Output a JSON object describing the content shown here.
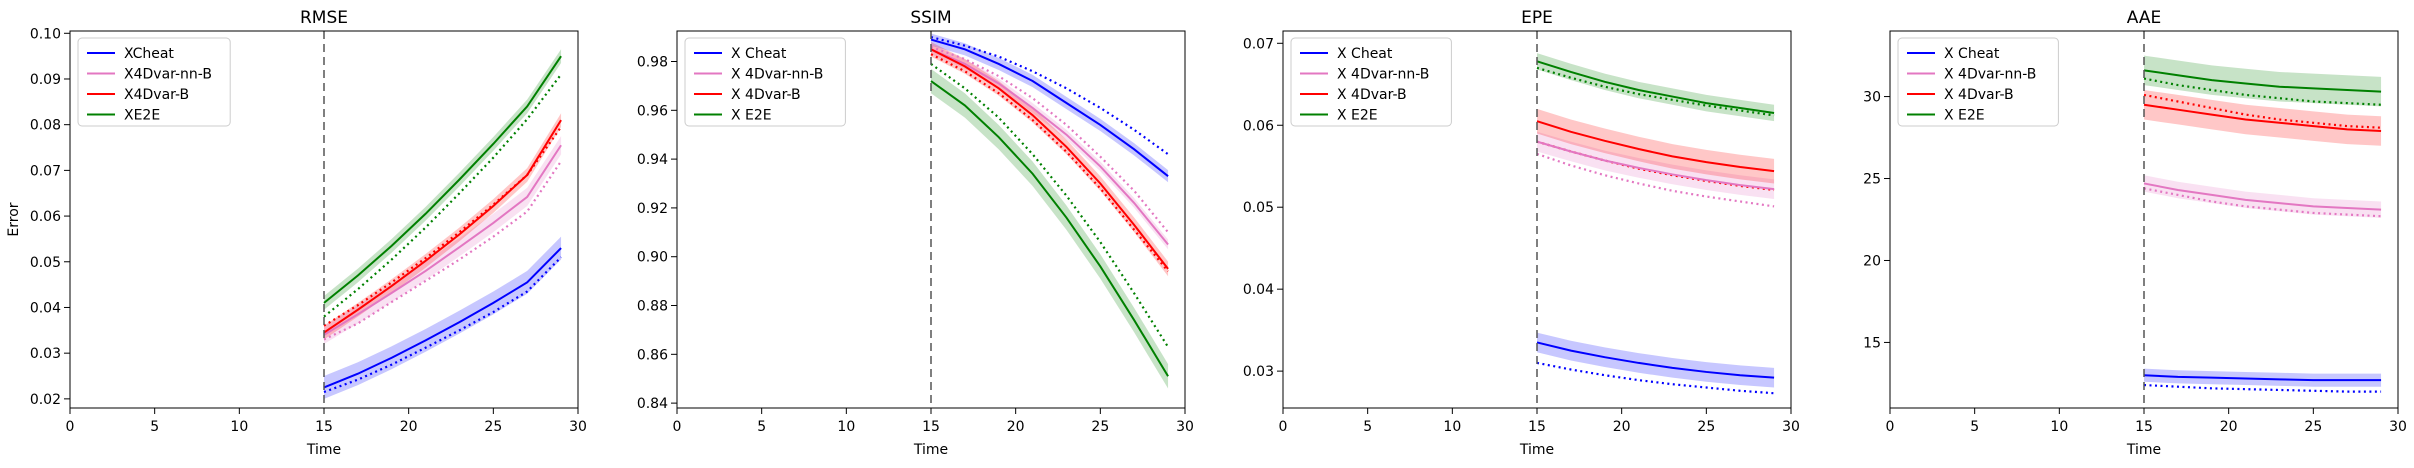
{
  "chart_data": [
    {
      "type": "line",
      "title": "RMSE",
      "xlabel": "Time",
      "ylabel": "Error",
      "xlim": [
        0,
        30
      ],
      "ylim": [
        0.018,
        0.1005
      ],
      "xticks": [
        "0",
        "5",
        "10",
        "15",
        "20",
        "25",
        "30"
      ],
      "yticks": [
        "0.02",
        "0.03",
        "0.04",
        "0.05",
        "0.06",
        "0.07",
        "0.08",
        "0.09",
        "0.10"
      ],
      "vline_x": 15,
      "legend_position": "top-left",
      "x": [
        15,
        17,
        19,
        21,
        23,
        25,
        27,
        29
      ],
      "series": [
        {
          "name": "XCheat",
          "color": "#0000ff",
          "values": [
            0.0225,
            0.0255,
            0.029,
            0.0328,
            0.0368,
            0.041,
            0.0455,
            0.053
          ],
          "dotted": [
            0.0215,
            0.0242,
            0.0275,
            0.0312,
            0.035,
            0.039,
            0.0435,
            0.051
          ],
          "band": 0.0025
        },
        {
          "name": "X4Dvar-nn-B",
          "color": "#e377c2",
          "values": [
            0.034,
            0.0385,
            0.0432,
            0.048,
            0.0532,
            0.0585,
            0.0642,
            0.0755
          ],
          "dotted": [
            0.033,
            0.0365,
            0.0412,
            0.0458,
            0.0505,
            0.0555,
            0.061,
            0.072
          ],
          "band": 0.002
        },
        {
          "name": "X4Dvar-B",
          "color": "#ff0000",
          "values": [
            0.0345,
            0.0395,
            0.0447,
            0.0502,
            0.056,
            0.0622,
            0.069,
            0.081
          ],
          "dotted": [
            0.036,
            0.0405,
            0.0455,
            0.0508,
            0.0565,
            0.0625,
            0.069,
            0.0795
          ],
          "band": 0.0015
        },
        {
          "name": "XE2E",
          "color": "#008000",
          "values": [
            0.041,
            0.047,
            0.0535,
            0.0605,
            0.068,
            0.0758,
            0.084,
            0.095
          ],
          "dotted": [
            0.038,
            0.044,
            0.0505,
            0.0575,
            0.065,
            0.0728,
            0.0812,
            0.091
          ],
          "band": 0.0015
        }
      ]
    },
    {
      "type": "line",
      "title": "SSIM",
      "xlabel": "Time",
      "ylabel": "",
      "xlim": [
        0,
        30
      ],
      "ylim": [
        0.838,
        0.9925
      ],
      "xticks": [
        "0",
        "5",
        "10",
        "15",
        "20",
        "25",
        "30"
      ],
      "yticks": [
        "0.84",
        "0.86",
        "0.88",
        "0.90",
        "0.92",
        "0.94",
        "0.96",
        "0.98"
      ],
      "vline_x": 15,
      "legend_position": "top-left",
      "x": [
        15,
        17,
        19,
        21,
        23,
        25,
        27,
        29
      ],
      "series": [
        {
          "name": "X Cheat",
          "color": "#0000ff",
          "values": [
            0.989,
            0.985,
            0.979,
            0.972,
            0.963,
            0.954,
            0.944,
            0.933
          ],
          "dotted": [
            0.99,
            0.9865,
            0.982,
            0.976,
            0.969,
            0.961,
            0.952,
            0.942
          ],
          "band": 0.0025
        },
        {
          "name": "X 4Dvar-nn-B",
          "color": "#e377c2",
          "values": [
            0.985,
            0.979,
            0.971,
            0.961,
            0.95,
            0.937,
            0.922,
            0.905
          ],
          "dotted": [
            0.986,
            0.981,
            0.974,
            0.965,
            0.954,
            0.941,
            0.927,
            0.91
          ],
          "band": 0.002
        },
        {
          "name": "X 4Dvar-B",
          "color": "#ff0000",
          "values": [
            0.985,
            0.978,
            0.969,
            0.958,
            0.945,
            0.93,
            0.913,
            0.895
          ],
          "dotted": [
            0.983,
            0.976,
            0.967,
            0.956,
            0.943,
            0.928,
            0.911,
            0.894
          ],
          "band": 0.003
        },
        {
          "name": "X E2E",
          "color": "#008000",
          "values": [
            0.972,
            0.962,
            0.949,
            0.934,
            0.916,
            0.896,
            0.874,
            0.851
          ],
          "dotted": [
            0.979,
            0.969,
            0.957,
            0.942,
            0.925,
            0.906,
            0.885,
            0.863
          ],
          "band": 0.005
        }
      ]
    },
    {
      "type": "line",
      "title": "EPE",
      "xlabel": "Time",
      "ylabel": "",
      "xlim": [
        0,
        30
      ],
      "ylim": [
        0.0255,
        0.0715
      ],
      "xticks": [
        "0",
        "5",
        "10",
        "15",
        "20",
        "25",
        "30"
      ],
      "yticks": [
        "0.03",
        "0.04",
        "0.05",
        "0.06",
        "0.07"
      ],
      "vline_x": 15,
      "legend_position": "top-left",
      "x": [
        15,
        17,
        19,
        21,
        23,
        25,
        27,
        29
      ],
      "series": [
        {
          "name": "X Cheat",
          "color": "#0000ff",
          "values": [
            0.0335,
            0.0325,
            0.0317,
            0.031,
            0.0304,
            0.0299,
            0.0295,
            0.0292
          ],
          "dotted": [
            0.031,
            0.0302,
            0.0295,
            0.0289,
            0.0284,
            0.028,
            0.0276,
            0.0273
          ],
          "band": 0.0012
        },
        {
          "name": "X 4Dvar-nn-B",
          "color": "#e377c2",
          "values": [
            0.058,
            0.0568,
            0.0557,
            0.0548,
            0.054,
            0.0533,
            0.0527,
            0.0522
          ],
          "dotted": [
            0.0565,
            0.0551,
            0.0539,
            0.0529,
            0.052,
            0.0513,
            0.0507,
            0.0501
          ],
          "band": 0.0012
        },
        {
          "name": "X 4Dvar-B",
          "color": "#ff0000",
          "values": [
            0.0605,
            0.0592,
            0.0581,
            0.0571,
            0.0562,
            0.0555,
            0.0549,
            0.0544
          ],
          "dotted": [
            0.058,
            0.0568,
            0.0557,
            0.0547,
            0.0539,
            0.0532,
            0.0526,
            0.0521
          ],
          "band": 0.0015
        },
        {
          "name": "X E2E",
          "color": "#008000",
          "values": [
            0.0678,
            0.0665,
            0.0653,
            0.0643,
            0.0635,
            0.0627,
            0.0621,
            0.0615
          ],
          "dotted": [
            0.067,
            0.0658,
            0.0647,
            0.0638,
            0.0631,
            0.0624,
            0.0618,
            0.0612
          ],
          "band": 0.001
        }
      ]
    },
    {
      "type": "line",
      "title": "AAE",
      "xlabel": "Time",
      "ylabel": "",
      "xlim": [
        0,
        30
      ],
      "ylim": [
        11.0,
        34.0
      ],
      "xticks": [
        "0",
        "5",
        "10",
        "15",
        "20",
        "25",
        "30"
      ],
      "yticks": [
        "15",
        "20",
        "25",
        "30"
      ],
      "vline_x": 15,
      "legend_position": "top-left",
      "x": [
        15,
        17,
        19,
        21,
        23,
        25,
        27,
        29
      ],
      "series": [
        {
          "name": "X Cheat",
          "color": "#0000ff",
          "values": [
            13.0,
            12.9,
            12.85,
            12.8,
            12.75,
            12.7,
            12.7,
            12.7
          ],
          "dotted": [
            12.4,
            12.3,
            12.2,
            12.15,
            12.1,
            12.05,
            12.0,
            12.0
          ],
          "band": 0.4
        },
        {
          "name": "X 4Dvar-nn-B",
          "color": "#e377c2",
          "values": [
            24.7,
            24.3,
            24.0,
            23.7,
            23.5,
            23.3,
            23.2,
            23.1
          ],
          "dotted": [
            24.4,
            24.0,
            23.6,
            23.3,
            23.1,
            22.9,
            22.8,
            22.7
          ],
          "band": 0.5
        },
        {
          "name": "X 4Dvar-B",
          "color": "#ff0000",
          "values": [
            29.5,
            29.2,
            28.9,
            28.6,
            28.4,
            28.2,
            28.0,
            27.9
          ],
          "dotted": [
            30.1,
            29.7,
            29.3,
            28.9,
            28.6,
            28.4,
            28.2,
            28.1
          ],
          "band": 0.9
        },
        {
          "name": "X E2E",
          "color": "#008000",
          "values": [
            31.6,
            31.3,
            31.0,
            30.8,
            30.6,
            30.5,
            30.4,
            30.3
          ],
          "dotted": [
            31.1,
            30.7,
            30.4,
            30.1,
            29.9,
            29.7,
            29.6,
            29.5
          ],
          "band": 0.9
        }
      ]
    }
  ]
}
